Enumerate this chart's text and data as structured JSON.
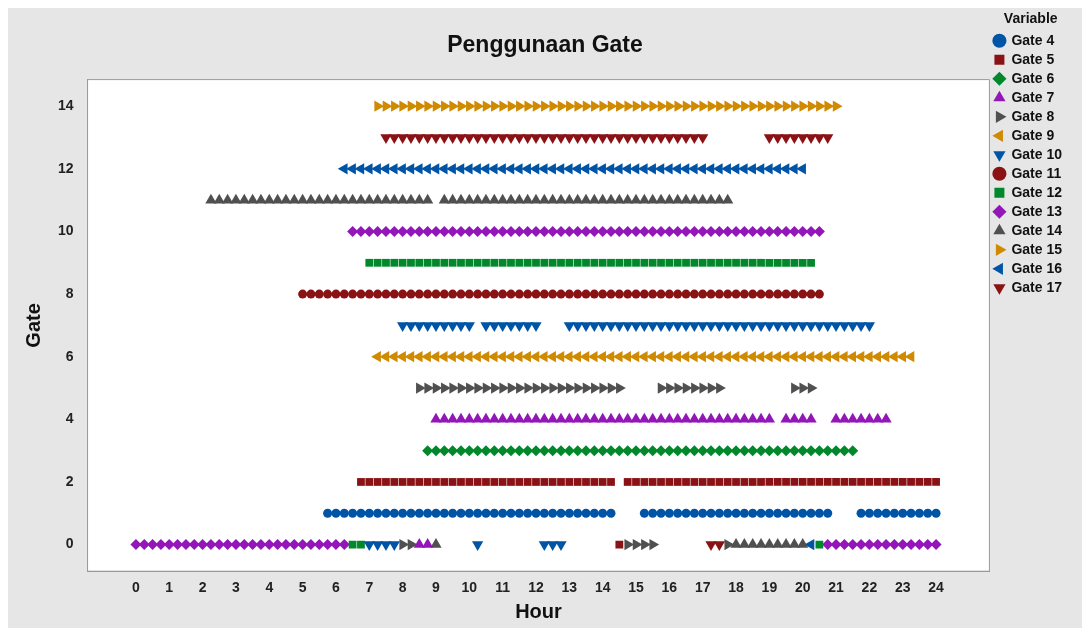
{
  "chart_data": {
    "type": "scatter",
    "title": "Penggunaan Gate",
    "xlabel": "Hour",
    "ylabel": "Gate",
    "legend_title": "Variable",
    "legend": "right",
    "grid": false,
    "xlim": [
      -1.45,
      25.6
    ],
    "ylim": [
      -0.85,
      14.85
    ],
    "xticks": [
      0,
      1,
      2,
      3,
      4,
      5,
      6,
      7,
      8,
      9,
      10,
      11,
      12,
      13,
      14,
      15,
      16,
      17,
      18,
      19,
      20,
      21,
      22,
      23,
      24
    ],
    "yticks": [
      0,
      2,
      4,
      6,
      8,
      10,
      12,
      14
    ],
    "x": [
      0,
      0.25,
      0.5,
      0.75,
      1,
      1.25,
      1.5,
      1.75,
      2,
      2.25,
      2.5,
      2.75,
      3,
      3.25,
      3.5,
      3.75,
      4,
      4.25,
      4.5,
      4.75,
      5,
      5.25,
      5.5,
      5.75,
      6,
      6.25,
      6.5,
      6.75,
      7,
      7.25,
      7.5,
      7.75,
      8,
      8.25,
      8.5,
      8.75,
      9,
      9.25,
      9.5,
      9.75,
      10,
      10.25,
      10.5,
      10.75,
      11,
      11.25,
      11.5,
      11.75,
      12,
      12.25,
      12.5,
      12.75,
      13,
      13.25,
      13.5,
      13.75,
      14,
      14.25,
      14.5,
      14.75,
      15,
      15.25,
      15.5,
      15.75,
      16,
      16.25,
      16.5,
      16.75,
      17,
      17.25,
      17.5,
      17.75,
      18,
      18.25,
      18.5,
      18.75,
      19,
      19.25,
      19.5,
      19.75,
      20,
      20.25,
      20.5,
      20.75,
      21,
      21.25,
      21.5,
      21.75,
      22,
      22.25,
      22.5,
      22.75,
      23,
      23.25,
      23.5,
      23.75,
      24
    ],
    "series": [
      {
        "name": "Gate 4",
        "color": "#0054a6",
        "marker": "circle",
        "values": [
          null,
          null,
          null,
          null,
          null,
          null,
          null,
          null,
          null,
          null,
          null,
          null,
          null,
          null,
          null,
          null,
          null,
          null,
          null,
          null,
          null,
          null,
          null,
          1,
          1,
          1,
          1,
          1,
          1,
          1,
          1,
          1,
          1,
          1,
          1,
          1,
          1,
          1,
          1,
          1,
          1,
          1,
          1,
          1,
          1,
          1,
          1,
          1,
          1,
          1,
          1,
          1,
          1,
          1,
          1,
          1,
          1,
          1,
          null,
          null,
          null,
          1,
          1,
          1,
          1,
          1,
          1,
          1,
          1,
          1,
          1,
          1,
          1,
          1,
          1,
          1,
          1,
          1,
          1,
          1,
          1,
          1,
          1,
          1,
          null,
          null,
          null,
          1,
          1,
          1,
          1,
          1,
          1,
          1,
          1,
          1,
          1
        ]
      },
      {
        "name": "Gate 5",
        "color": "#8b1214",
        "marker": "square",
        "values": [
          null,
          null,
          null,
          null,
          null,
          null,
          null,
          null,
          null,
          null,
          null,
          null,
          null,
          null,
          null,
          null,
          null,
          null,
          null,
          null,
          null,
          null,
          null,
          null,
          null,
          null,
          null,
          2,
          2,
          2,
          2,
          2,
          2,
          2,
          2,
          2,
          2,
          2,
          2,
          2,
          2,
          2,
          2,
          2,
          2,
          2,
          2,
          2,
          2,
          2,
          2,
          2,
          2,
          2,
          2,
          2,
          2,
          2,
          0,
          2,
          2,
          2,
          2,
          2,
          2,
          2,
          2,
          2,
          2,
          2,
          2,
          2,
          2,
          2,
          2,
          2,
          2,
          2,
          2,
          2,
          2,
          2,
          2,
          2,
          2,
          2,
          2,
          2,
          2,
          2,
          2,
          2,
          2,
          2,
          2,
          2,
          2
        ]
      },
      {
        "name": "Gate 6",
        "color": "#00882a",
        "marker": "diamond",
        "values": [
          null,
          null,
          null,
          null,
          null,
          null,
          null,
          null,
          null,
          null,
          null,
          null,
          null,
          null,
          null,
          null,
          null,
          null,
          null,
          null,
          null,
          null,
          null,
          null,
          null,
          null,
          null,
          null,
          null,
          null,
          null,
          null,
          null,
          null,
          null,
          3,
          3,
          3,
          3,
          3,
          3,
          3,
          3,
          3,
          3,
          3,
          3,
          3,
          3,
          3,
          3,
          3,
          3,
          3,
          3,
          3,
          3,
          3,
          3,
          3,
          3,
          3,
          3,
          3,
          3,
          3,
          3,
          3,
          3,
          3,
          3,
          3,
          3,
          3,
          3,
          3,
          3,
          3,
          3,
          3,
          3,
          3,
          3,
          3,
          3,
          3,
          3,
          null,
          null,
          null,
          null,
          null,
          null,
          null,
          null,
          null,
          null
        ]
      },
      {
        "name": "Gate 7",
        "color": "#9316b8",
        "marker": "triangle",
        "values": [
          null,
          null,
          null,
          null,
          null,
          null,
          null,
          null,
          null,
          null,
          null,
          null,
          null,
          null,
          null,
          null,
          null,
          null,
          null,
          null,
          null,
          null,
          null,
          null,
          null,
          null,
          null,
          null,
          null,
          null,
          null,
          null,
          null,
          null,
          0,
          0,
          4,
          4,
          4,
          4,
          4,
          4,
          4,
          4,
          4,
          4,
          4,
          4,
          4,
          4,
          4,
          4,
          4,
          4,
          4,
          4,
          4,
          4,
          4,
          4,
          4,
          4,
          4,
          4,
          4,
          4,
          4,
          4,
          4,
          4,
          4,
          4,
          4,
          4,
          4,
          4,
          4,
          null,
          4,
          4,
          4,
          4,
          null,
          null,
          4,
          4,
          4,
          4,
          4,
          4,
          4,
          null,
          null,
          null,
          null,
          null,
          null
        ]
      },
      {
        "name": "Gate 8",
        "color": "#505050",
        "marker": "triangle-right",
        "values": [
          null,
          null,
          null,
          null,
          null,
          null,
          null,
          null,
          null,
          null,
          null,
          null,
          null,
          null,
          null,
          null,
          null,
          null,
          null,
          null,
          null,
          null,
          null,
          null,
          null,
          null,
          null,
          null,
          null,
          null,
          null,
          null,
          0,
          0,
          5,
          5,
          5,
          5,
          5,
          5,
          5,
          5,
          5,
          5,
          5,
          5,
          5,
          5,
          5,
          5,
          5,
          5,
          5,
          5,
          5,
          5,
          5,
          5,
          5,
          0,
          0,
          0,
          0,
          5,
          5,
          5,
          5,
          5,
          5,
          5,
          5,
          0,
          null,
          null,
          null,
          null,
          null,
          null,
          null,
          5,
          5,
          5,
          null,
          null,
          null,
          null,
          null,
          null,
          null,
          null,
          null,
          null,
          null,
          null,
          null,
          null,
          null
        ]
      },
      {
        "name": "Gate 9",
        "color": "#d08a00",
        "marker": "triangle-left",
        "values": [
          null,
          null,
          null,
          null,
          null,
          null,
          null,
          null,
          null,
          null,
          null,
          null,
          null,
          null,
          null,
          null,
          null,
          null,
          null,
          null,
          null,
          null,
          null,
          null,
          null,
          null,
          null,
          null,
          null,
          6,
          6,
          6,
          6,
          6,
          6,
          6,
          6,
          6,
          6,
          6,
          6,
          6,
          6,
          6,
          6,
          6,
          6,
          6,
          6,
          6,
          6,
          6,
          6,
          6,
          6,
          6,
          6,
          6,
          6,
          6,
          6,
          6,
          6,
          6,
          6,
          6,
          6,
          6,
          6,
          6,
          6,
          6,
          6,
          6,
          6,
          6,
          6,
          6,
          6,
          6,
          6,
          6,
          6,
          6,
          6,
          6,
          6,
          6,
          6,
          6,
          6,
          6,
          6,
          6,
          null,
          null,
          null
        ]
      },
      {
        "name": "Gate 10",
        "color": "#0054a6",
        "marker": "triangle-down",
        "values": [
          null,
          null,
          null,
          null,
          null,
          null,
          null,
          null,
          null,
          null,
          null,
          null,
          null,
          null,
          null,
          null,
          null,
          null,
          null,
          null,
          null,
          null,
          null,
          null,
          null,
          null,
          null,
          null,
          0,
          0,
          0,
          0,
          7,
          7,
          7,
          7,
          7,
          7,
          7,
          7,
          7,
          0,
          7,
          7,
          7,
          7,
          7,
          7,
          7,
          0,
          0,
          0,
          7,
          7,
          7,
          7,
          7,
          7,
          7,
          7,
          7,
          7,
          7,
          7,
          7,
          7,
          7,
          7,
          7,
          7,
          7,
          7,
          7,
          7,
          7,
          7,
          7,
          7,
          7,
          7,
          7,
          7,
          7,
          7,
          7,
          7,
          7,
          7,
          7,
          null,
          null,
          null,
          null,
          null,
          null,
          null,
          null
        ]
      },
      {
        "name": "Gate 11",
        "color": "#8b1214",
        "marker": "circle",
        "values": [
          null,
          null,
          null,
          null,
          null,
          null,
          null,
          null,
          null,
          null,
          null,
          null,
          null,
          null,
          null,
          null,
          null,
          null,
          null,
          null,
          8,
          8,
          8,
          8,
          8,
          8,
          8,
          8,
          8,
          8,
          8,
          8,
          8,
          8,
          8,
          8,
          8,
          8,
          8,
          8,
          8,
          8,
          8,
          8,
          8,
          8,
          8,
          8,
          8,
          8,
          8,
          8,
          8,
          8,
          8,
          8,
          8,
          8,
          8,
          8,
          8,
          8,
          8,
          8,
          8,
          8,
          8,
          8,
          8,
          8,
          8,
          8,
          8,
          8,
          8,
          8,
          8,
          8,
          8,
          8,
          8,
          8,
          8,
          null,
          null,
          null,
          null,
          null,
          null,
          null,
          null,
          null,
          null,
          null,
          null,
          null,
          null
        ]
      },
      {
        "name": "Gate 12",
        "color": "#00882a",
        "marker": "square",
        "values": [
          null,
          null,
          null,
          null,
          null,
          null,
          null,
          null,
          null,
          null,
          null,
          null,
          null,
          null,
          null,
          null,
          null,
          null,
          null,
          null,
          null,
          null,
          null,
          null,
          null,
          null,
          0,
          0,
          9,
          9,
          9,
          9,
          9,
          9,
          9,
          9,
          9,
          9,
          9,
          9,
          9,
          9,
          9,
          9,
          9,
          9,
          9,
          9,
          9,
          9,
          9,
          9,
          9,
          9,
          9,
          9,
          9,
          9,
          9,
          9,
          9,
          9,
          9,
          9,
          9,
          9,
          9,
          9,
          9,
          9,
          9,
          9,
          9,
          9,
          9,
          9,
          9,
          9,
          9,
          9,
          9,
          9,
          0,
          null,
          null,
          null,
          null,
          null,
          null,
          null,
          null,
          null,
          null,
          null,
          null,
          null,
          null
        ]
      },
      {
        "name": "Gate 13",
        "color": "#9316b8",
        "marker": "diamond",
        "values": [
          0,
          0,
          0,
          0,
          0,
          0,
          0,
          0,
          0,
          0,
          0,
          0,
          0,
          0,
          0,
          0,
          0,
          0,
          0,
          0,
          0,
          0,
          0,
          0,
          0,
          0,
          10,
          10,
          10,
          10,
          10,
          10,
          10,
          10,
          10,
          10,
          10,
          10,
          10,
          10,
          10,
          10,
          10,
          10,
          10,
          10,
          10,
          10,
          10,
          10,
          10,
          10,
          10,
          10,
          10,
          10,
          10,
          10,
          10,
          10,
          10,
          10,
          10,
          10,
          10,
          10,
          10,
          10,
          10,
          10,
          10,
          10,
          10,
          10,
          10,
          10,
          10,
          10,
          10,
          10,
          10,
          10,
          10,
          0,
          0,
          0,
          0,
          0,
          0,
          0,
          0,
          0,
          0,
          0,
          0,
          0,
          0
        ]
      },
      {
        "name": "Gate 14",
        "color": "#505050",
        "marker": "triangle",
        "values": [
          null,
          null,
          null,
          null,
          null,
          null,
          null,
          null,
          null,
          11,
          11,
          11,
          11,
          11,
          11,
          11,
          11,
          11,
          11,
          11,
          11,
          11,
          11,
          11,
          11,
          11,
          11,
          11,
          11,
          11,
          11,
          11,
          11,
          11,
          11,
          11,
          0,
          11,
          11,
          11,
          11,
          11,
          11,
          11,
          11,
          11,
          11,
          11,
          11,
          11,
          11,
          11,
          11,
          11,
          11,
          11,
          11,
          11,
          11,
          11,
          11,
          11,
          11,
          11,
          11,
          11,
          11,
          11,
          11,
          11,
          11,
          11,
          0,
          0,
          0,
          0,
          0,
          0,
          0,
          0,
          0,
          null,
          null,
          null,
          null,
          null,
          null,
          null,
          null,
          null,
          null,
          null,
          null,
          null,
          null,
          null,
          null
        ]
      },
      {
        "name": "Gate 15",
        "color": "#d08a00",
        "marker": "triangle-right",
        "values": [
          null,
          null,
          null,
          null,
          null,
          null,
          null,
          null,
          null,
          null,
          null,
          null,
          null,
          null,
          null,
          null,
          null,
          null,
          null,
          null,
          null,
          null,
          null,
          null,
          null,
          null,
          null,
          null,
          null,
          14,
          14,
          14,
          14,
          14,
          14,
          14,
          14,
          14,
          14,
          14,
          14,
          14,
          14,
          14,
          14,
          14,
          14,
          14,
          14,
          14,
          14,
          14,
          14,
          14,
          14,
          14,
          14,
          14,
          14,
          14,
          14,
          14,
          14,
          14,
          14,
          14,
          14,
          14,
          14,
          14,
          14,
          14,
          14,
          14,
          14,
          14,
          14,
          14,
          14,
          14,
          14,
          14,
          14,
          14,
          14,
          null,
          null,
          null,
          null,
          null,
          null,
          null,
          null,
          null,
          null,
          null,
          null
        ]
      },
      {
        "name": "Gate 16",
        "color": "#0054a6",
        "marker": "triangle-left",
        "values": [
          null,
          null,
          null,
          null,
          null,
          null,
          null,
          null,
          null,
          null,
          null,
          null,
          null,
          null,
          null,
          null,
          null,
          null,
          null,
          null,
          null,
          null,
          null,
          null,
          null,
          12,
          12,
          12,
          12,
          12,
          12,
          12,
          12,
          12,
          12,
          12,
          12,
          12,
          12,
          12,
          12,
          12,
          12,
          12,
          12,
          12,
          12,
          12,
          12,
          12,
          12,
          12,
          12,
          12,
          12,
          12,
          12,
          12,
          12,
          12,
          12,
          12,
          12,
          12,
          12,
          12,
          12,
          12,
          12,
          12,
          12,
          12,
          12,
          12,
          12,
          12,
          12,
          12,
          12,
          12,
          12,
          0,
          null,
          null,
          null,
          null,
          null,
          null,
          null,
          null,
          null,
          null,
          null,
          null,
          null,
          null,
          null
        ]
      },
      {
        "name": "Gate 17",
        "color": "#8b1214",
        "marker": "triangle-down",
        "values": [
          null,
          null,
          null,
          null,
          null,
          null,
          null,
          null,
          null,
          null,
          null,
          null,
          null,
          null,
          null,
          null,
          null,
          null,
          null,
          null,
          null,
          null,
          null,
          null,
          null,
          null,
          null,
          null,
          null,
          null,
          13,
          13,
          13,
          13,
          13,
          13,
          13,
          13,
          13,
          13,
          13,
          13,
          13,
          13,
          13,
          13,
          13,
          13,
          13,
          13,
          13,
          13,
          13,
          13,
          13,
          13,
          13,
          13,
          13,
          13,
          13,
          13,
          13,
          13,
          13,
          13,
          13,
          13,
          13,
          0,
          0,
          null,
          null,
          null,
          null,
          null,
          13,
          13,
          13,
          13,
          13,
          13,
          13,
          13,
          null,
          null,
          null,
          null,
          null,
          null,
          null,
          null,
          null,
          null,
          null,
          null,
          null
        ]
      }
    ]
  }
}
